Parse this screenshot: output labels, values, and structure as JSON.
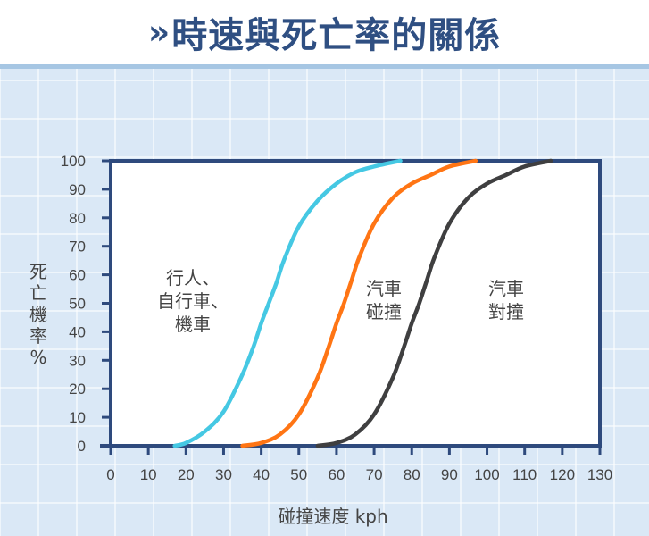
{
  "title": {
    "chevron": "»",
    "text": "時速與死亡率的關係"
  },
  "chart_data": {
    "type": "line",
    "title": "時速與死亡率的關係",
    "xlabel": "碰撞速度 kph",
    "ylabel": "死亡機率 %",
    "xlim": [
      0,
      130
    ],
    "ylim": [
      0,
      100
    ],
    "x_ticks": [
      0,
      10,
      20,
      30,
      40,
      50,
      60,
      70,
      80,
      90,
      100,
      110,
      120,
      130
    ],
    "y_ticks": [
      0,
      10,
      20,
      30,
      40,
      50,
      60,
      70,
      80,
      90,
      100
    ],
    "grid": false,
    "series": [
      {
        "name": "行人、自行車、機車",
        "color": "#45c8e3",
        "x": [
          17,
          20,
          25,
          30,
          35,
          38,
          40,
          42,
          44,
          46,
          50,
          55,
          60,
          65,
          70,
          77
        ],
        "y": [
          0,
          1,
          5,
          12,
          25,
          35,
          43,
          50,
          57,
          65,
          77,
          86,
          92,
          96,
          98,
          100
        ]
      },
      {
        "name": "汽車碰撞",
        "color": "#ff7514",
        "x": [
          35,
          40,
          45,
          50,
          55,
          58,
          60,
          62,
          64,
          66,
          70,
          75,
          80,
          85,
          90,
          97
        ],
        "y": [
          0,
          1,
          4,
          11,
          24,
          35,
          43,
          50,
          58,
          66,
          78,
          87,
          92,
          95,
          98,
          100
        ]
      },
      {
        "name": "汽車對撞",
        "color": "#3f3f40",
        "x": [
          55,
          60,
          65,
          70,
          75,
          78,
          80,
          82,
          84,
          86,
          90,
          95,
          100,
          105,
          110,
          117
        ],
        "y": [
          0,
          1,
          4,
          11,
          24,
          35,
          43,
          50,
          58,
          66,
          78,
          87,
          92,
          95,
          98,
          100
        ]
      }
    ],
    "annotations": [
      {
        "text": "行人、\n自行車、\n機車",
        "x": 22,
        "y": 50
      },
      {
        "text": "汽車\n碰撞",
        "x": 72,
        "y": 52
      },
      {
        "text": "汽車\n對撞",
        "x": 104,
        "y": 52
      }
    ]
  },
  "labels": {
    "ylabel_chars": [
      "死",
      "亡",
      "機",
      "率",
      "%"
    ],
    "xlabel": "碰撞速度 kph",
    "ann1": [
      "行人、",
      "自行車、",
      "機車"
    ],
    "ann2": [
      "汽車",
      "碰撞"
    ],
    "ann3": [
      "汽車",
      "對撞"
    ]
  },
  "colors": {
    "axis": "#2e4a7d",
    "title": "#2f4f82",
    "background": "#dae8f6"
  }
}
